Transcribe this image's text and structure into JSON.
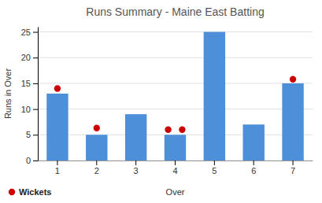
{
  "chart_data": {
    "type": "bar",
    "title": "Runs Summary - Maine East Batting",
    "x_label": "Over",
    "y_label": "Runs in Over",
    "categories": [
      1,
      2,
      3,
      4,
      5,
      6,
      7
    ],
    "values": [
      13,
      5,
      9,
      5,
      25,
      7,
      15
    ],
    "color": "#4d90d9",
    "series": [
      {
        "name": "Wickets",
        "type": "scatter",
        "marker": "circle",
        "color": "#cc0000",
        "x": [
          1,
          2,
          4,
          4,
          7
        ],
        "values": [
          14.0,
          6.3,
          6.0,
          6.0,
          15.8
        ]
      }
    ],
    "ylim": [
      0,
      26
    ],
    "yticks": [
      0,
      5,
      10,
      15,
      20,
      25
    ],
    "grid": true,
    "legend": "lower left"
  }
}
